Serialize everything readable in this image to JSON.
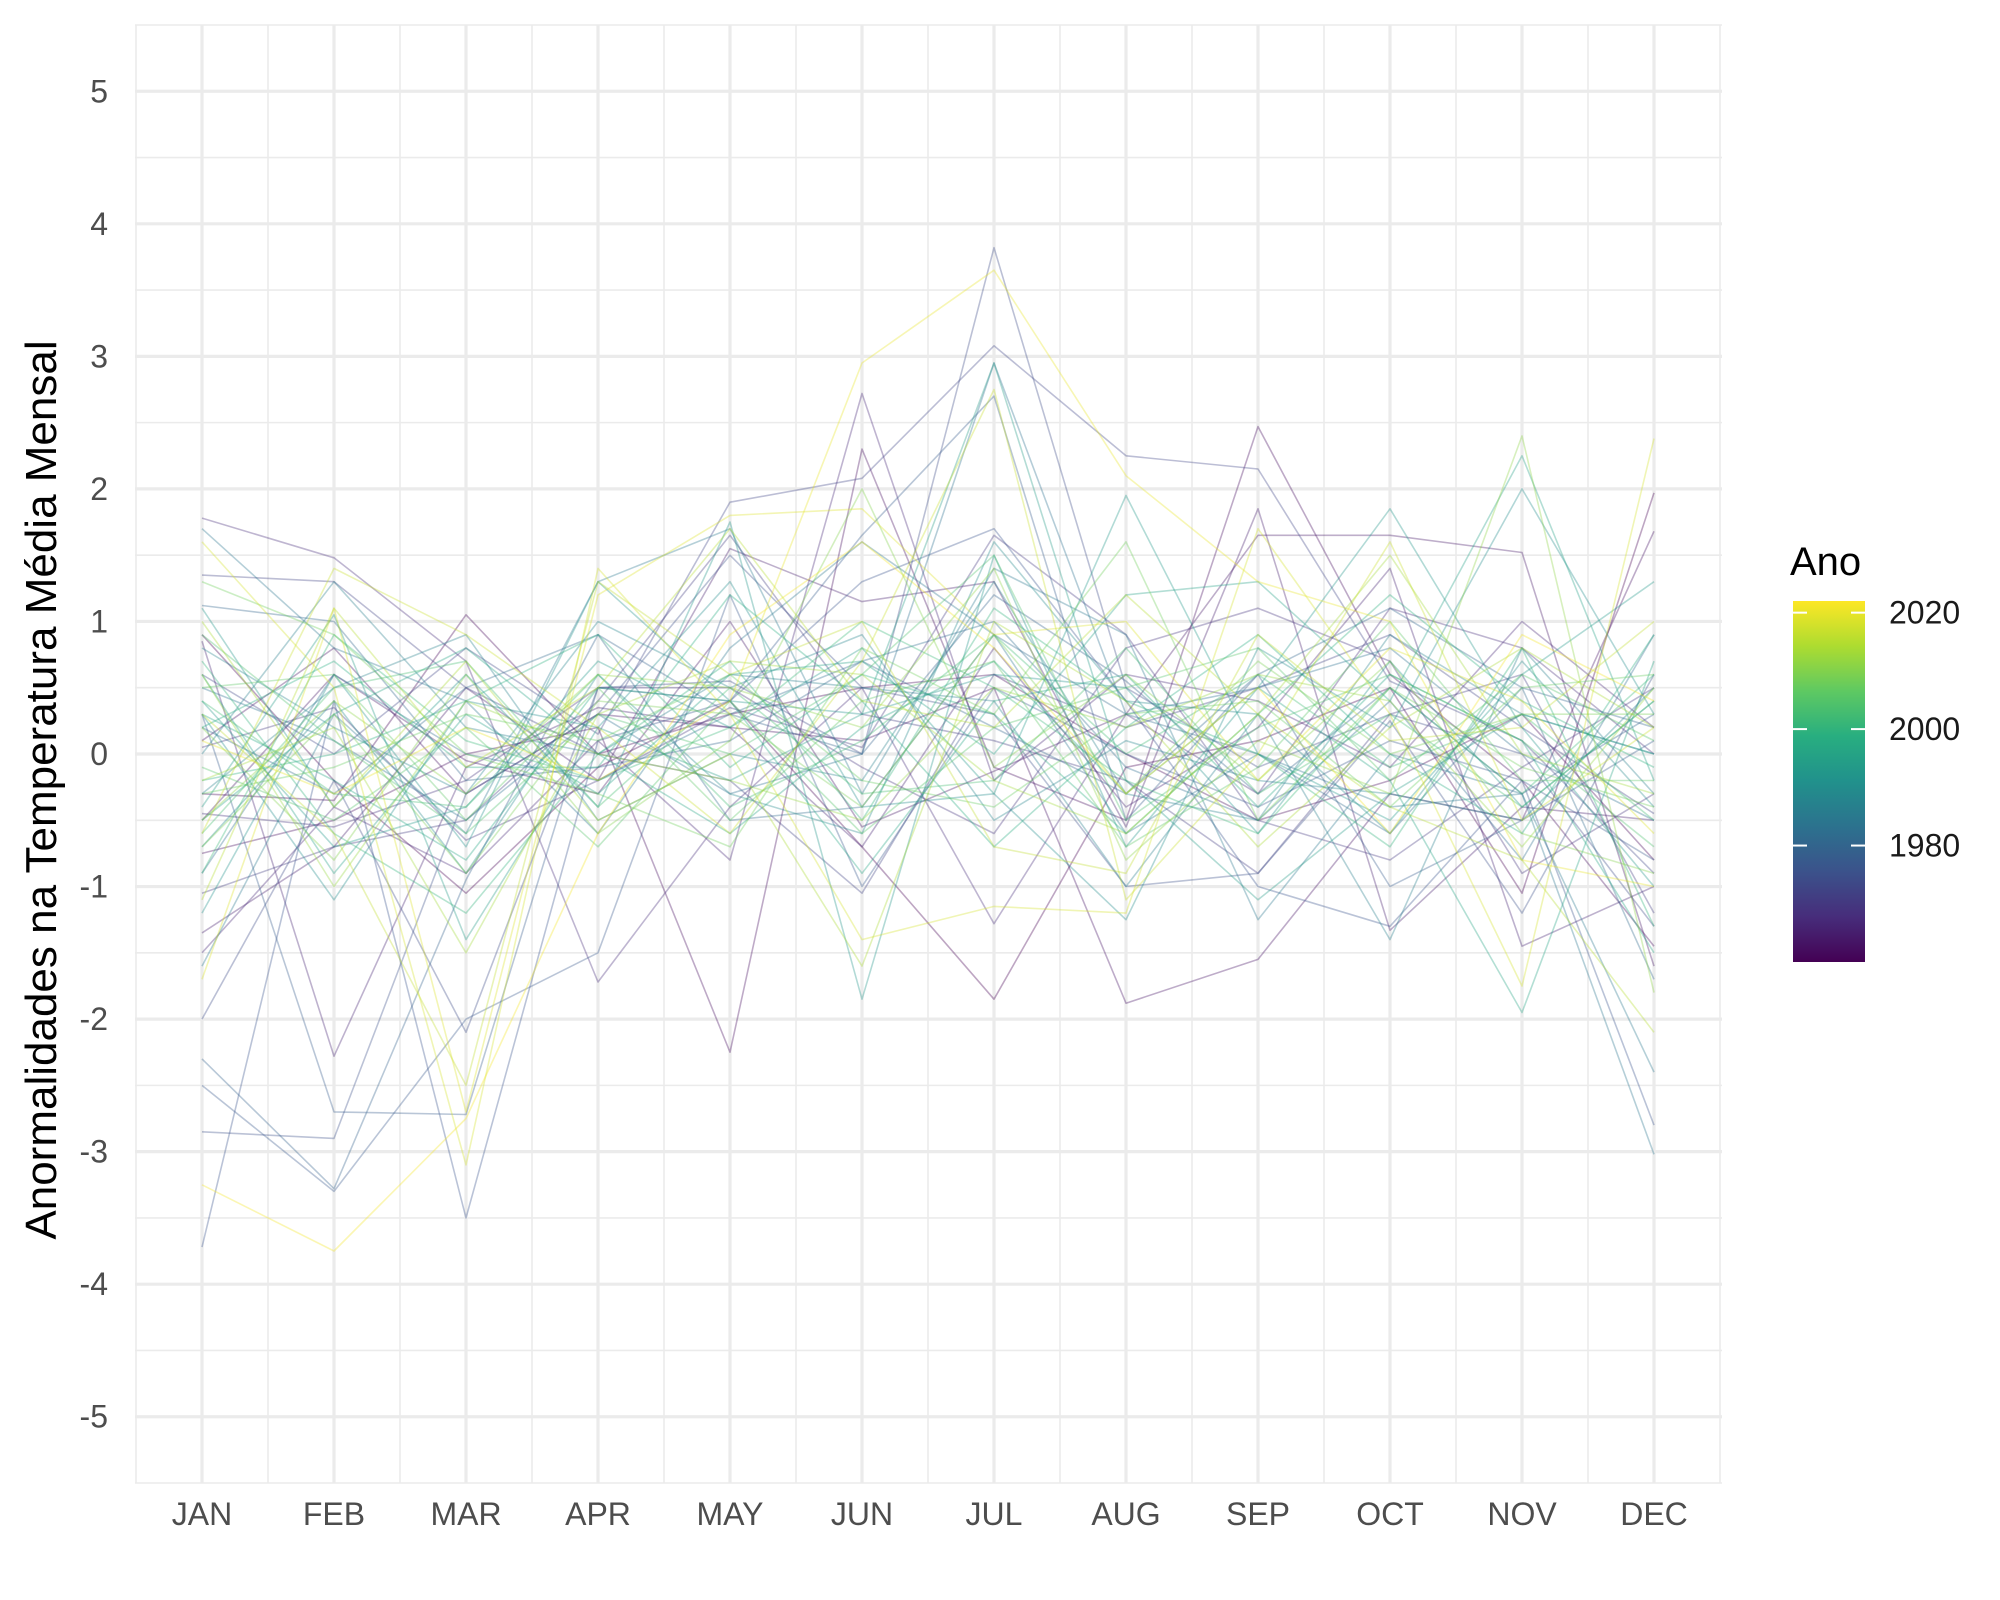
{
  "chart_data": {
    "type": "line",
    "ylabel": "Anormalidades na Temperatura Média Mensal",
    "xlabel": "",
    "categories": [
      "JAN",
      "FEB",
      "MAR",
      "APR",
      "MAY",
      "JUN",
      "JUL",
      "AUG",
      "SEP",
      "OCT",
      "NOV",
      "DEC"
    ],
    "ylim": [
      -5.5,
      5.5
    ],
    "yticks": [
      -5,
      -4,
      -3,
      -2,
      -1,
      0,
      1,
      2,
      3,
      4,
      5
    ],
    "ytick_labels": [
      "-5",
      "-4",
      "-3",
      "-2",
      "-1",
      "0",
      "1",
      "2",
      "3",
      "4",
      "5"
    ],
    "grid": true,
    "legend": {
      "title": "Ano",
      "placement": "right",
      "type": "continuous colorbar",
      "range": [
        1960,
        2022
      ],
      "breaks": [
        1980,
        2000,
        2020
      ],
      "break_labels": [
        "1980",
        "2000",
        "2020"
      ],
      "colors": [
        "#440154",
        "#472d7b",
        "#3b528b",
        "#2c728e",
        "#21918c",
        "#28ae80",
        "#5ec962",
        "#addc30",
        "#fde725"
      ]
    },
    "line_alpha": 0.35,
    "series": [
      {
        "year": 1960,
        "values": [
          0.9,
          -0.2,
          -1.05,
          -0.1,
          0.4,
          -0.7,
          -1.85,
          -0.1,
          0.1,
          0.5,
          -1.05,
          1.97
        ]
      },
      {
        "year": 1961,
        "values": [
          -0.3,
          -0.35,
          1.05,
          0.0,
          0.3,
          0.5,
          0.6,
          0.0,
          -0.5,
          -0.2,
          0.3,
          -0.8
        ]
      },
      {
        "year": 1962,
        "values": [
          -0.75,
          -0.5,
          0.0,
          0.2,
          -2.25,
          2.3,
          -0.1,
          -0.5,
          2.47,
          0.6,
          -0.2,
          -1.45
        ]
      },
      {
        "year": 1963,
        "values": [
          0.1,
          0.8,
          -0.3,
          0.3,
          0.2,
          0.1,
          0.5,
          -1.88,
          -1.55,
          -0.3,
          -0.5,
          1.68
        ]
      },
      {
        "year": 1964,
        "values": [
          -0.5,
          0.6,
          -0.05,
          -0.3,
          1.0,
          -0.55,
          -0.13,
          0.3,
          1.65,
          1.65,
          1.52,
          -1.6
        ]
      },
      {
        "year": 1965,
        "values": [
          -1.35,
          -0.7,
          0.5,
          -0.2,
          1.55,
          1.15,
          1.3,
          -0.55,
          1.85,
          -1.33,
          -0.4,
          -0.5
        ]
      },
      {
        "year": 1966,
        "values": [
          0.85,
          -2.28,
          -0.1,
          0.35,
          0.2,
          -0.7,
          0.8,
          -0.4,
          0.2,
          1.4,
          -1.45,
          -1.0
        ]
      },
      {
        "year": 1967,
        "values": [
          -1.5,
          -0.4,
          -0.9,
          0.1,
          -0.8,
          2.72,
          -0.2,
          0.6,
          0.4,
          -0.1,
          1.0,
          0.2
        ]
      },
      {
        "year": 1968,
        "values": [
          1.78,
          1.48,
          0.7,
          -1.72,
          -0.4,
          0.5,
          -1.28,
          0.3,
          -0.3,
          1.1,
          0.8,
          0.0
        ]
      },
      {
        "year": 1969,
        "values": [
          -0.45,
          -0.55,
          -0.2,
          0.5,
          0.5,
          -0.1,
          -0.6,
          0.8,
          1.1,
          0.7,
          -0.9,
          -0.3
        ]
      },
      {
        "year": 1970,
        "values": [
          0.05,
          0.35,
          -0.65,
          -0.2,
          0.35,
          0.05,
          1.65,
          0.9,
          -0.5,
          -0.8,
          -0.1,
          0.5
        ]
      },
      {
        "year": 1971,
        "values": [
          -1.05,
          -0.7,
          -0.5,
          0.4,
          1.65,
          0.3,
          0.1,
          -0.2,
          -0.9,
          0.3,
          0.6,
          -1.2
        ]
      },
      {
        "year": 1972,
        "values": [
          1.35,
          1.3,
          0.5,
          0.0,
          -0.2,
          -1.05,
          0.6,
          0.2,
          0.5,
          0.9,
          0.2,
          -0.45
        ]
      },
      {
        "year": 1973,
        "values": [
          0.6,
          0.0,
          0.8,
          0.15,
          1.9,
          2.08,
          3.08,
          2.25,
          2.15,
          0.55,
          0.1,
          -0.9
        ]
      },
      {
        "year": 1974,
        "values": [
          -2.0,
          -0.2,
          -2.1,
          0.5,
          0.55,
          0.0,
          3.82,
          0.5,
          -0.1,
          0.3,
          0.0,
          -1.3
        ]
      },
      {
        "year": 1975,
        "values": [
          -2.85,
          -2.9,
          -0.3,
          0.3,
          1.5,
          0.5,
          0.3,
          -1.0,
          -0.9,
          0.25,
          -1.2,
          0.6
        ]
      },
      {
        "year": 1976,
        "values": [
          -3.72,
          0.4,
          -3.5,
          0.1,
          0.4,
          1.3,
          1.7,
          0.4,
          -1.0,
          -1.3,
          -0.2,
          -2.8
        ]
      },
      {
        "year": 1977,
        "values": [
          -2.5,
          -3.3,
          -2.0,
          -1.5,
          1.2,
          -1.0,
          0.5,
          0.0,
          -0.4,
          0.1,
          -0.2,
          -0.8
        ]
      },
      {
        "year": 1978,
        "values": [
          0.3,
          -2.7,
          -2.72,
          0.5,
          0.4,
          1.65,
          2.7,
          -0.5,
          0.6,
          -1.0,
          -0.5,
          0.1
        ]
      },
      {
        "year": 1979,
        "values": [
          -2.3,
          -3.28,
          -0.95,
          0.9,
          0.3,
          0.0,
          1.2,
          0.55,
          -0.3,
          0.5,
          -0.3,
          0.3
        ]
      },
      {
        "year": 1980,
        "values": [
          1.12,
          1.0,
          -0.2,
          -0.1,
          0.1,
          0.7,
          0.2,
          -0.3,
          0.6,
          1.1,
          0.5,
          0.2
        ]
      },
      {
        "year": 1981,
        "values": [
          0.2,
          -0.3,
          0.5,
          0.9,
          -0.5,
          -0.4,
          0.9,
          0.3,
          0.0,
          -0.6,
          0.5,
          -1.7
        ]
      },
      {
        "year": 1982,
        "values": [
          -0.9,
          0.6,
          0.0,
          -0.2,
          0.3,
          0.7,
          1.0,
          -0.1,
          -0.5,
          0.4,
          -0.8,
          0.9
        ]
      },
      {
        "year": 1983,
        "values": [
          0.5,
          0.1,
          -0.5,
          0.3,
          -0.3,
          0.0,
          2.95,
          0.3,
          0.5,
          0.8,
          0.0,
          -0.5
        ]
      },
      {
        "year": 1984,
        "values": [
          1.7,
          0.8,
          0.4,
          -0.6,
          0.8,
          1.6,
          0.9,
          -0.6,
          0.0,
          -0.4,
          -0.3,
          -3.02
        ]
      },
      {
        "year": 1985,
        "values": [
          -1.6,
          0.3,
          -0.6,
          1.3,
          1.7,
          -0.3,
          1.4,
          0.9,
          -1.25,
          0.0,
          -0.3,
          -2.4
        ]
      },
      {
        "year": 1986,
        "values": [
          0.0,
          1.3,
          0.2,
          0.0,
          0.6,
          0.5,
          0.4,
          -1.0,
          0.3,
          -1.4,
          0.8,
          -0.3
        ]
      },
      {
        "year": 1987,
        "values": [
          -0.3,
          0.5,
          0.9,
          -0.5,
          0.0,
          -0.2,
          1.3,
          -0.3,
          -0.5,
          0.9,
          0.3,
          0.0
        ]
      },
      {
        "year": 1988,
        "values": [
          0.8,
          0.2,
          -0.3,
          1.0,
          0.5,
          0.9,
          -0.5,
          0.1,
          -0.2,
          -0.3,
          -0.5,
          0.5
        ]
      },
      {
        "year": 1989,
        "values": [
          -0.7,
          0.4,
          -0.9,
          0.6,
          -0.3,
          -0.6,
          1.6,
          0.4,
          0.3,
          -0.6,
          0.7,
          -0.4
        ]
      },
      {
        "year": 1990,
        "values": [
          0.3,
          -1.1,
          0.4,
          0.2,
          1.3,
          -0.4,
          -0.3,
          -1.25,
          0.8,
          0.2,
          2.0,
          0.3
        ]
      },
      {
        "year": 1991,
        "values": [
          -1.2,
          0.6,
          -0.7,
          1.3,
          0.4,
          0.3,
          0.6,
          0.5,
          -0.6,
          0.7,
          -0.4,
          0.4
        ]
      },
      {
        "year": 1992,
        "values": [
          1.1,
          -0.4,
          0.6,
          -0.4,
          1.75,
          -1.85,
          1.5,
          -0.7,
          0.5,
          1.85,
          0.2,
          -1.0
        ]
      },
      {
        "year": 1993,
        "values": [
          0.4,
          -0.7,
          -0.4,
          0.7,
          0.2,
          0.8,
          -0.3,
          1.95,
          0.0,
          -0.5,
          0.6,
          1.3
        ]
      },
      {
        "year": 1994,
        "values": [
          -0.4,
          1.05,
          -1.4,
          0.2,
          -0.2,
          0.3,
          2.95,
          -0.2,
          -1.1,
          -0.3,
          0.3,
          0.0
        ]
      },
      {
        "year": 1995,
        "values": [
          0.6,
          -0.9,
          0.3,
          -0.3,
          0.6,
          0.7,
          0.0,
          1.2,
          1.3,
          0.4,
          2.25,
          -0.2
        ]
      },
      {
        "year": 1996,
        "values": [
          -0.5,
          0.3,
          0.8,
          0.0,
          -0.6,
          0.2,
          0.7,
          -0.3,
          0.5,
          -0.2,
          -1.95,
          0.7
        ]
      },
      {
        "year": 1997,
        "values": [
          0.3,
          -0.2,
          -0.8,
          0.5,
          0.4,
          -0.9,
          0.4,
          0.6,
          -0.4,
          0.6,
          0.1,
          -1.5
        ]
      },
      {
        "year": 1998,
        "values": [
          0.2,
          0.7,
          -0.1,
          -0.1,
          1.2,
          0.4,
          -0.7,
          0.2,
          0.9,
          0.0,
          -0.6,
          0.9
        ]
      },
      {
        "year": 1999,
        "values": [
          -0.2,
          0.0,
          0.4,
          0.9,
          -0.1,
          0.6,
          0.3,
          -0.6,
          0.3,
          1.2,
          0.4,
          -0.1
        ]
      },
      {
        "year": 2000,
        "values": [
          0.7,
          -0.6,
          -1.2,
          0.0,
          0.7,
          -0.5,
          1.1,
          0.4,
          0.0,
          -0.7,
          0.8,
          -1.3
        ]
      },
      {
        "year": 2001,
        "values": [
          -0.9,
          0.9,
          0.1,
          -0.2,
          0.2,
          1.0,
          0.5,
          -0.2,
          -0.6,
          0.5,
          -0.3,
          0.6
        ]
      },
      {
        "year": 2002,
        "values": [
          0.4,
          -0.3,
          -0.4,
          0.6,
          -0.4,
          0.1,
          0.9,
          0.0,
          0.6,
          -0.1,
          0.3,
          -0.5
        ]
      },
      {
        "year": 2003,
        "values": [
          -0.6,
          0.5,
          0.7,
          -0.4,
          0.5,
          -0.3,
          -0.2,
          0.8,
          -0.3,
          0.3,
          -0.4,
          0.4
        ]
      },
      {
        "year": 2004,
        "values": [
          0.9,
          0.1,
          -0.6,
          0.3,
          0.0,
          0.6,
          1.5,
          -0.5,
          0.2,
          0.6,
          0.1,
          -0.7
        ]
      },
      {
        "year": 2005,
        "values": [
          -0.1,
          -0.5,
          0.2,
          -0.7,
          0.4,
          -0.6,
          0.2,
          0.5,
          0.8,
          -0.2,
          0.6,
          0.1
        ]
      },
      {
        "year": 2006,
        "values": [
          0.5,
          0.6,
          -0.5,
          0.5,
          -0.5,
          0.4,
          0.7,
          -0.7,
          -0.1,
          1.0,
          -0.2,
          -0.2
        ]
      },
      {
        "year": 2007,
        "values": [
          -0.3,
          -0.1,
          0.3,
          0.1,
          0.6,
          -0.2,
          -0.4,
          0.3,
          0.4,
          -0.4,
          0.5,
          0.6
        ]
      },
      {
        "year": 2008,
        "values": [
          1.3,
          0.9,
          0.0,
          -0.3,
          -0.7,
          0.8,
          0.3,
          1.6,
          -0.5,
          0.5,
          -0.1,
          -0.4
        ]
      },
      {
        "year": 2009,
        "values": [
          -0.7,
          0.3,
          -0.9,
          0.4,
          0.3,
          -0.4,
          0.9,
          -0.3,
          0.7,
          0.0,
          0.3,
          0.3
        ]
      },
      {
        "year": 2010,
        "values": [
          0.2,
          -0.8,
          0.6,
          -0.6,
          0.1,
          2.0,
          -0.1,
          0.6,
          -0.2,
          0.7,
          -0.6,
          -0.9
        ]
      },
      {
        "year": 2011,
        "values": [
          -0.5,
          0.4,
          -0.3,
          0.6,
          0.5,
          0.2,
          1.4,
          -0.8,
          0.1,
          -0.3,
          2.4,
          -1.8
        ]
      },
      {
        "year": 2012,
        "values": [
          0.6,
          -1.0,
          0.4,
          0.0,
          -0.2,
          -0.5,
          0.5,
          0.2,
          0.6,
          0.4,
          -0.7,
          0.5
        ]
      },
      {
        "year": 2013,
        "values": [
          -0.2,
          0.2,
          -1.5,
          0.3,
          0.7,
          0.6,
          -0.2,
          -0.6,
          0.3,
          1.5,
          0.0,
          -0.3
        ]
      },
      {
        "year": 2014,
        "values": [
          1.0,
          -0.4,
          0.7,
          -0.5,
          0.0,
          -1.6,
          1.0,
          0.4,
          -0.7,
          0.2,
          0.8,
          0.2
        ]
      },
      {
        "year": 2015,
        "values": [
          -1.1,
          1.1,
          -0.1,
          0.5,
          1.7,
          0.4,
          0.2,
          1.2,
          0.3,
          -0.4,
          -0.8,
          -2.1
        ]
      },
      {
        "year": 2016,
        "values": [
          0.3,
          -0.6,
          -2.5,
          1.3,
          0.6,
          1.0,
          -0.7,
          -0.9,
          0.9,
          0.1,
          0.2,
          1.0
        ]
      },
      {
        "year": 2017,
        "values": [
          -0.6,
          1.4,
          0.9,
          0.2,
          -0.6,
          0.7,
          2.75,
          -1.1,
          0.0,
          1.6,
          -0.5,
          0.2
        ]
      },
      {
        "year": 2018,
        "values": [
          1.6,
          0.5,
          -3.1,
          1.4,
          0.3,
          -1.4,
          -1.15,
          -1.2,
          1.7,
          0.3,
          -1.75,
          2.38
        ]
      },
      {
        "year": 2019,
        "values": [
          -1.7,
          1.1,
          -2.7,
          1.2,
          1.8,
          1.85,
          0.9,
          1.0,
          -0.2,
          0.8,
          0.4,
          -0.6
        ]
      },
      {
        "year": 2020,
        "values": [
          0.1,
          -0.3,
          0.2,
          -0.2,
          0.4,
          2.95,
          3.65,
          2.1,
          1.3,
          1.0,
          -0.8,
          -1.0
        ]
      },
      {
        "year": 2021,
        "values": [
          -3.25,
          -3.75,
          -2.75,
          -0.6,
          0.9,
          1.6,
          0.8,
          -0.3,
          0.5,
          -0.6,
          0.9,
          0.4
        ]
      }
    ]
  }
}
